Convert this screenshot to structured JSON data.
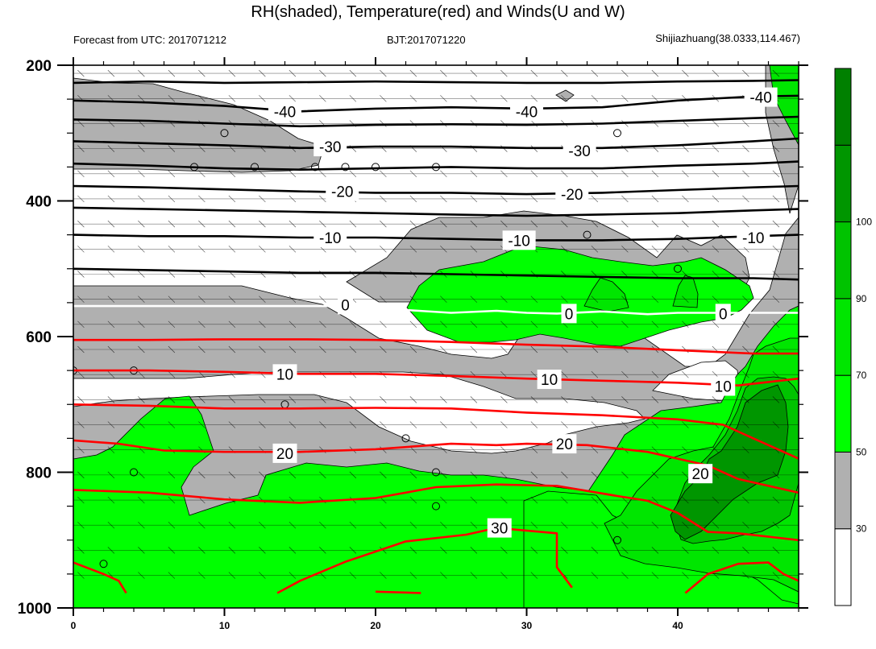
{
  "chart_data": {
    "type": "heatmap",
    "title": "RH(shaded), Temperature(red) and Winds(U and W)",
    "subtitle_left": "Forecast from UTC: 2017071212",
    "subtitle_center": "BJT:2017071220",
    "subtitle_right": "Shijiazhuang(38.0333,114.467)",
    "xlim": [
      0,
      48
    ],
    "ylim": [
      200,
      1000
    ],
    "x_ticks": [
      "0",
      "10",
      "20",
      "30",
      "40"
    ],
    "x_tick_values": [
      0,
      10,
      20,
      30,
      40
    ],
    "y_ticks": [
      "200",
      "400",
      "600",
      "800",
      "1000"
    ],
    "y_tick_values": [
      200,
      400,
      600,
      800,
      1000
    ],
    "colorbar": {
      "levels": [
        "30",
        "50",
        "70",
        "90",
        "100"
      ],
      "level_values": [
        30,
        50,
        70,
        90,
        100
      ],
      "colors": [
        "#ffffff",
        "#b0b0b0",
        "#00ff00",
        "#00e600",
        "#00c300",
        "#009600",
        "#008000"
      ]
    },
    "temperature_labels": [
      {
        "text": "-40",
        "x": 14,
        "y": 268,
        "color": "#000000"
      },
      {
        "text": "-40",
        "x": 30,
        "y": 268,
        "color": "#000000"
      },
      {
        "text": "-40",
        "x": 45.5,
        "y": 247,
        "color": "#000000"
      },
      {
        "text": "-30",
        "x": 17,
        "y": 320,
        "color": "#000000"
      },
      {
        "text": "-30",
        "x": 33.5,
        "y": 326,
        "color": "#000000"
      },
      {
        "text": "-20",
        "x": 17.8,
        "y": 386,
        "color": "#000000"
      },
      {
        "text": "-20",
        "x": 33,
        "y": 390,
        "color": "#000000"
      },
      {
        "text": "-10",
        "x": 17,
        "y": 454,
        "color": "#000000"
      },
      {
        "text": "-10",
        "x": 29.5,
        "y": 458,
        "color": "#000000"
      },
      {
        "text": "-10",
        "x": 45,
        "y": 454,
        "color": "#000000"
      },
      {
        "text": "0",
        "x": 18,
        "y": 553,
        "color": "#ffffff"
      },
      {
        "text": "0",
        "x": 32.8,
        "y": 566,
        "color": "#ffffff"
      },
      {
        "text": "0",
        "x": 43,
        "y": 566,
        "color": "#ffffff"
      },
      {
        "text": "10",
        "x": 14,
        "y": 655,
        "color": "#ff0000"
      },
      {
        "text": "10",
        "x": 31.5,
        "y": 663,
        "color": "#ff0000"
      },
      {
        "text": "10",
        "x": 43,
        "y": 673,
        "color": "#ff0000"
      },
      {
        "text": "20",
        "x": 14,
        "y": 772,
        "color": "#ff0000"
      },
      {
        "text": "20",
        "x": 32.5,
        "y": 758,
        "color": "#ff0000"
      },
      {
        "text": "20",
        "x": 41.5,
        "y": 802,
        "color": "#ff0000"
      },
      {
        "text": "30",
        "x": 28.2,
        "y": 882,
        "color": "#ff0000"
      }
    ],
    "temperature_contours": [
      {
        "level": -40,
        "color": "#000000",
        "points": [
          [
            0,
            226
          ],
          [
            5,
            224
          ],
          [
            10,
            226
          ],
          [
            15,
            225
          ],
          [
            20,
            224
          ],
          [
            25,
            225
          ],
          [
            30,
            226
          ],
          [
            35,
            226
          ],
          [
            40,
            224
          ],
          [
            45,
            223
          ],
          [
            48,
            222
          ]
        ]
      },
      {
        "level": -40,
        "color": "#000000",
        "points": [
          [
            0,
            252
          ],
          [
            5,
            255
          ],
          [
            10,
            260
          ],
          [
            13,
            265
          ],
          [
            15,
            268
          ],
          [
            20,
            264
          ],
          [
            25,
            262
          ],
          [
            30,
            264
          ],
          [
            35,
            262
          ],
          [
            40,
            252
          ],
          [
            45,
            246
          ],
          [
            48,
            245
          ]
        ]
      },
      {
        "level": -35,
        "color": "#000000",
        "points": [
          [
            0,
            280
          ],
          [
            5,
            282
          ],
          [
            10,
            286
          ],
          [
            15,
            290
          ],
          [
            20,
            288
          ],
          [
            25,
            287
          ],
          [
            30,
            288
          ],
          [
            35,
            286
          ],
          [
            40,
            282
          ],
          [
            45,
            278
          ],
          [
            48,
            276
          ]
        ]
      },
      {
        "level": -30,
        "color": "#000000",
        "points": [
          [
            0,
            312
          ],
          [
            5,
            315
          ],
          [
            10,
            318
          ],
          [
            15,
            322
          ],
          [
            20,
            320
          ],
          [
            25,
            320
          ],
          [
            30,
            322
          ],
          [
            35,
            322
          ],
          [
            40,
            318
          ],
          [
            45,
            312
          ],
          [
            48,
            308
          ]
        ]
      },
      {
        "level": -25,
        "color": "#000000",
        "points": [
          [
            0,
            345
          ],
          [
            5,
            348
          ],
          [
            10,
            352
          ],
          [
            15,
            354
          ],
          [
            20,
            352
          ],
          [
            25,
            350
          ],
          [
            30,
            352
          ],
          [
            35,
            352
          ],
          [
            40,
            348
          ],
          [
            45,
            345
          ],
          [
            48,
            342
          ]
        ]
      },
      {
        "level": -20,
        "color": "#000000",
        "points": [
          [
            0,
            378
          ],
          [
            5,
            380
          ],
          [
            10,
            383
          ],
          [
            15,
            386
          ],
          [
            20,
            388
          ],
          [
            25,
            388
          ],
          [
            30,
            390
          ],
          [
            35,
            388
          ],
          [
            40,
            384
          ],
          [
            45,
            380
          ],
          [
            48,
            378
          ]
        ]
      },
      {
        "level": -15,
        "color": "#000000",
        "points": [
          [
            0,
            410
          ],
          [
            5,
            412
          ],
          [
            10,
            414
          ],
          [
            15,
            416
          ],
          [
            20,
            418
          ],
          [
            25,
            420
          ],
          [
            30,
            422
          ],
          [
            35,
            420
          ],
          [
            40,
            418
          ],
          [
            45,
            414
          ],
          [
            48,
            412
          ]
        ]
      },
      {
        "level": -10,
        "color": "#000000",
        "points": [
          [
            0,
            450
          ],
          [
            5,
            452
          ],
          [
            10,
            452
          ],
          [
            15,
            454
          ],
          [
            20,
            454
          ],
          [
            25,
            456
          ],
          [
            30,
            458
          ],
          [
            35,
            458
          ],
          [
            40,
            456
          ],
          [
            45,
            452
          ],
          [
            48,
            450
          ]
        ]
      },
      {
        "level": -5,
        "color": "#000000",
        "points": [
          [
            0,
            500
          ],
          [
            5,
            502
          ],
          [
            10,
            504
          ],
          [
            15,
            506
          ],
          [
            20,
            506
          ],
          [
            25,
            508
          ],
          [
            30,
            510
          ],
          [
            35,
            512
          ],
          [
            40,
            514
          ],
          [
            45,
            514
          ],
          [
            48,
            516
          ]
        ]
      },
      {
        "level": 0,
        "color": "#ffffff",
        "points": [
          [
            0,
            555
          ],
          [
            5,
            555
          ],
          [
            10,
            555
          ],
          [
            15,
            555
          ],
          [
            18,
            555
          ],
          [
            20,
            558
          ],
          [
            25,
            565
          ],
          [
            28,
            562
          ],
          [
            30,
            565
          ],
          [
            32,
            566
          ],
          [
            35,
            563
          ],
          [
            38,
            567
          ],
          [
            40,
            565
          ],
          [
            43,
            565
          ],
          [
            46,
            565
          ],
          [
            48,
            565
          ]
        ]
      },
      {
        "level": 5,
        "color": "#ff0000",
        "points": [
          [
            0,
            605
          ],
          [
            5,
            605
          ],
          [
            10,
            604
          ],
          [
            15,
            604
          ],
          [
            20,
            605
          ],
          [
            25,
            608
          ],
          [
            30,
            612
          ],
          [
            35,
            615
          ],
          [
            40,
            620
          ],
          [
            45,
            625
          ],
          [
            48,
            625
          ]
        ]
      },
      {
        "level": 10,
        "color": "#ff0000",
        "points": [
          [
            0,
            650
          ],
          [
            5,
            650
          ],
          [
            10,
            652
          ],
          [
            15,
            655
          ],
          [
            20,
            655
          ],
          [
            25,
            658
          ],
          [
            30,
            662
          ],
          [
            35,
            665
          ],
          [
            40,
            668
          ],
          [
            44,
            672
          ],
          [
            48,
            662
          ]
        ]
      },
      {
        "level": 15,
        "color": "#ff0000",
        "points": [
          [
            0,
            700
          ],
          [
            5,
            702
          ],
          [
            10,
            706
          ],
          [
            15,
            706
          ],
          [
            20,
            705
          ],
          [
            25,
            706
          ],
          [
            30,
            712
          ],
          [
            35,
            716
          ],
          [
            40,
            722
          ],
          [
            43,
            730
          ],
          [
            45,
            750
          ],
          [
            48,
            780
          ]
        ]
      },
      {
        "level": 20,
        "color": "#ff0000",
        "points": [
          [
            0,
            753
          ],
          [
            3,
            758
          ],
          [
            6,
            768
          ],
          [
            10,
            770
          ],
          [
            15,
            770
          ],
          [
            20,
            766
          ],
          [
            25,
            758
          ],
          [
            28,
            760
          ],
          [
            30,
            758
          ],
          [
            34,
            760
          ],
          [
            38,
            770
          ],
          [
            42,
            790
          ],
          [
            44,
            810
          ],
          [
            46,
            820
          ],
          [
            48,
            830
          ]
        ]
      },
      {
        "level": 25,
        "color": "#ff0000",
        "points": [
          [
            0,
            826
          ],
          [
            5,
            830
          ],
          [
            10,
            840
          ],
          [
            15,
            845
          ],
          [
            20,
            838
          ],
          [
            24,
            822
          ],
          [
            28,
            818
          ],
          [
            32,
            820
          ],
          [
            36,
            835
          ],
          [
            38,
            842
          ],
          [
            40,
            860
          ],
          [
            42,
            888
          ],
          [
            44,
            890
          ],
          [
            46,
            895
          ],
          [
            48,
            900
          ]
        ]
      },
      {
        "level": 30,
        "color": "#ff0000",
        "points": [
          [
            0,
            933
          ],
          [
            2,
            950
          ],
          [
            3,
            960
          ],
          [
            3.5,
            978
          ]
        ]
      },
      {
        "level": 30,
        "color": "#ff0000",
        "points": [
          [
            13.5,
            978
          ],
          [
            15,
            960
          ],
          [
            18,
            932
          ],
          [
            22,
            902
          ],
          [
            26,
            892
          ],
          [
            28,
            882
          ],
          [
            32,
            890
          ],
          [
            32,
            940
          ],
          [
            33,
            970
          ]
        ]
      },
      {
        "level": 30,
        "color": "#ff0000",
        "points": [
          [
            40.5,
            978
          ],
          [
            42,
            950
          ],
          [
            44,
            935
          ],
          [
            46,
            933
          ],
          [
            47,
            950
          ],
          [
            48,
            960
          ]
        ]
      },
      {
        "level": 30,
        "color": "#ff0000",
        "points": [
          [
            20,
            976
          ],
          [
            23,
            978
          ]
        ]
      }
    ]
  }
}
